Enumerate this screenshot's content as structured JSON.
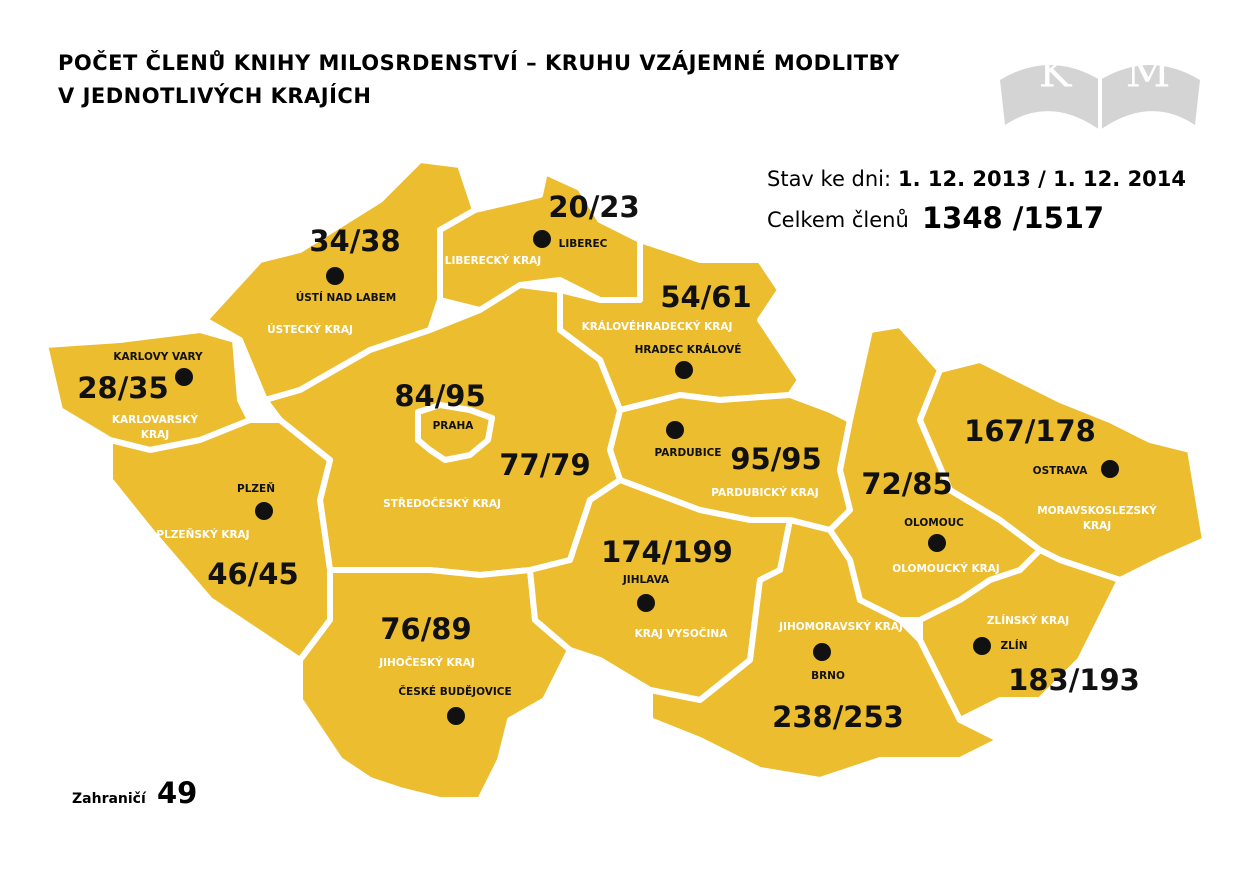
{
  "header": {
    "title": [
      "POČET ČLENŮ KNIHY MILOSRDENSTVÍ – KRUHU VZÁJEMNÉ MODLITBY",
      "V JEDNOTLIVÝCH KRAJÍCH"
    ],
    "logo": {
      "left": "K",
      "right": "M"
    }
  },
  "summary": {
    "date_label": "Stav ke dni:",
    "dates": "1. 12. 2013 / 1. 12. 2014",
    "total_label": "Celkem členů",
    "total": "1348 /1517"
  },
  "abroad": {
    "label": "Zahraničí",
    "count": "49"
  },
  "regions": [
    {
      "region": [
        "KARLOVARSKÝ",
        "KRAJ"
      ],
      "city": "KARLOVY VARY",
      "count": "28/35"
    },
    {
      "region": [
        "ÚSTECKÝ KRAJ"
      ],
      "city": "ÚSTÍ NAD LABEM",
      "count": "34/38"
    },
    {
      "region": [
        "LIBERECKÝ KRAJ"
      ],
      "city": "LIBEREC",
      "count": "20/23"
    },
    {
      "region": [
        "KRÁLOVÉHRADECKÝ KRAJ"
      ],
      "city": "HRADEC KRÁLOVÉ",
      "count": "54/61"
    },
    {
      "region": [
        "PARDUBICKÝ KRAJ"
      ],
      "city": "PARDUBICE",
      "count": "95/95"
    },
    {
      "region": [
        "STŘEDOČESKÝ KRAJ"
      ],
      "count": "77/79"
    },
    {
      "city": "PRAHA",
      "count": "84/95"
    },
    {
      "region": [
        "PLZEŇSKÝ KRAJ"
      ],
      "city": "PLZEŇ",
      "count": "46/45"
    },
    {
      "region": [
        "JIHOČESKÝ KRAJ"
      ],
      "city": "ČESKÉ BUDĚJOVICE",
      "count": "76/89"
    },
    {
      "region": [
        "KRAJ VYSOČINA"
      ],
      "city": "JIHLAVA",
      "count": "174/199"
    },
    {
      "region": [
        "JIHOMORAVSKÝ KRAJ"
      ],
      "city": "BRNO",
      "count": "238/253"
    },
    {
      "region": [
        "OLOMOUCKÝ KRAJ"
      ],
      "city": "OLOMOUC",
      "count": "72/85"
    },
    {
      "region": [
        "MORAVSKOSLEZSKÝ",
        "KRAJ"
      ],
      "city": "OSTRAVA",
      "count": "167/178"
    },
    {
      "region": [
        "ZLÍNSKÝ KRAJ"
      ],
      "city": "ZLÍN",
      "count": "183/193"
    }
  ]
}
